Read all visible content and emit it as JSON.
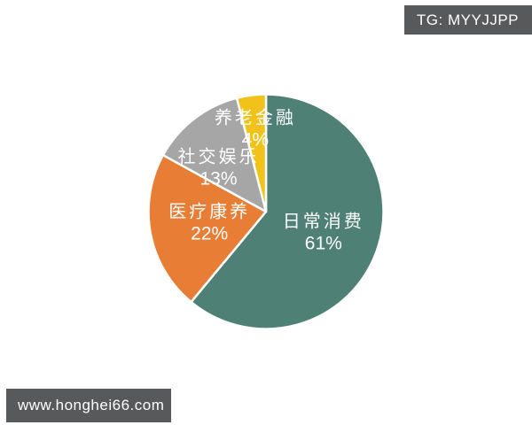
{
  "watermarks": {
    "telegram_badge": "TG: MYYJJPP",
    "website_badge": "www.honghei66.com"
  },
  "colors": {
    "background": "#FFFFFF",
    "badge_background": "#58595B",
    "badge_text": "#FFFFFF",
    "slice_border": "#FFFFFF",
    "label_text": "#FFFFFF"
  },
  "chart_data": {
    "type": "pie",
    "title": "",
    "legend": "none",
    "start_angle_deg": 0,
    "direction": "clockwise",
    "categories": [
      "日常消费",
      "医疗康养",
      "社交娱乐",
      "养老金融"
    ],
    "values": [
      61,
      22,
      13,
      4
    ],
    "percent_labels": [
      "61%",
      "22%",
      "13%",
      "4%"
    ],
    "colors": [
      "#4E8076",
      "#E87E35",
      "#A6A6A6",
      "#F0C21A"
    ]
  }
}
